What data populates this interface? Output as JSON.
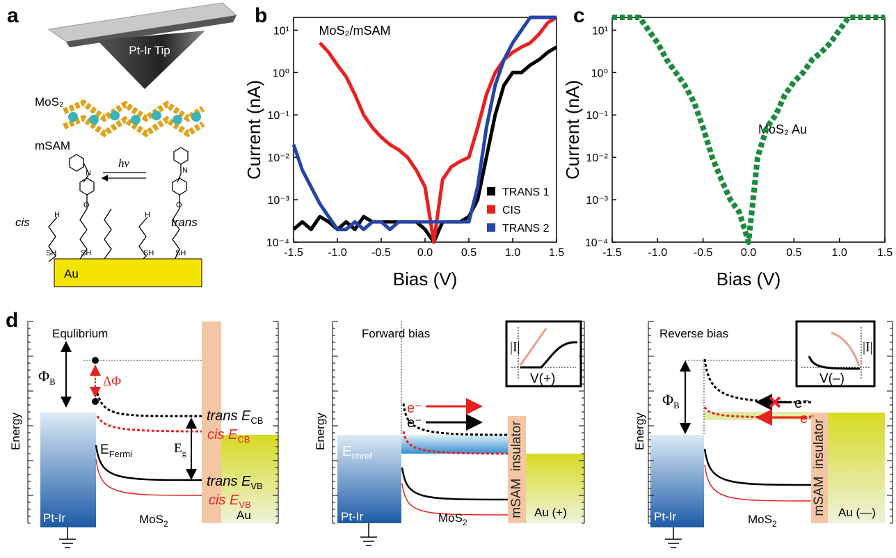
{
  "panel_labels": [
    "a",
    "b",
    "c",
    "d"
  ],
  "schematic": {
    "tip": "Pt-Ir Tip",
    "mos2": "MoS₂",
    "msam": "mSAM",
    "light": "hν",
    "cis": "cis",
    "trans": "trans",
    "thiol": "SH",
    "hydrogen": "H",
    "oxygen": "O",
    "nitrogen": "N",
    "substrate": "Au"
  },
  "chart_data": [
    {
      "type": "line",
      "annotation": "MoS₂/mSAM",
      "x_label": "Bias (V)",
      "y_label": "Current (nA)",
      "log_y": true,
      "legend": "lower right",
      "x": [
        -1.5,
        -1.4,
        -1.3,
        -1.2,
        -1.1,
        -1,
        -0.9,
        -0.8,
        -0.7,
        -0.6,
        -0.5,
        -0.4,
        -0.3,
        -0.2,
        -0.1,
        0,
        0.1,
        0.2,
        0.3,
        0.4,
        0.5,
        0.6,
        0.7,
        0.8,
        0.9,
        1,
        1.1,
        1.2,
        1.3,
        1.4,
        1.5
      ],
      "series": [
        {
          "name": "TRANS 1",
          "color": "#000000",
          "values": [
            0.0002,
            0.0003,
            0.0002,
            0.0004,
            0.0003,
            0.0002,
            0.0003,
            0.0002,
            0.0004,
            0.0003,
            0.0003,
            0.0003,
            0.0003,
            0.0003,
            0.0003,
            0.0002,
            0.0001,
            0.0003,
            0.0003,
            0.0003,
            0.0004,
            0.001,
            0.01,
            0.1,
            0.5,
            1,
            1,
            1.5,
            2,
            3,
            4
          ]
        },
        {
          "name": "CIS",
          "color": "#e8211f",
          "values": [
            null,
            null,
            null,
            5,
            3,
            1.5,
            0.8,
            0.3,
            0.1,
            0.05,
            0.03,
            0.02,
            0.015,
            0.01,
            0.005,
            0.002,
            0.0001,
            0.003,
            0.006,
            0.008,
            0.01,
            0.05,
            0.3,
            1,
            2,
            3,
            4,
            5,
            8,
            15,
            20
          ]
        },
        {
          "name": "TRANS 2",
          "color": "#2444a8",
          "values": [
            0.02,
            0.005,
            0.002,
            0.0008,
            0.0004,
            0.0002,
            0.0002,
            0.0003,
            0.0002,
            0.0003,
            0.0003,
            0.0002,
            0.0003,
            0.0003,
            0.0003,
            0.0003,
            0.0003,
            0.0003,
            0.0003,
            0.0003,
            0.0003,
            0.002,
            0.05,
            0.5,
            2,
            5,
            10,
            20,
            20,
            20,
            20
          ]
        }
      ],
      "xlim": [
        -1.5,
        1.5
      ],
      "xticks": [
        -1.5,
        {
          "value": -1,
          "label": "-1.0"
        },
        -0.5,
        {
          "value": 0,
          "label": "0.0"
        },
        0.5,
        {
          "value": 1,
          "label": "1.0"
        },
        1.5
      ],
      "ylim": [
        0.0001,
        20
      ],
      "yticks": [
        {
          "value": 0.0001,
          "label": "10⁻⁴"
        },
        {
          "value": 0.001,
          "label": "10⁻³"
        },
        {
          "value": 0.01,
          "label": "10⁻²"
        },
        {
          "value": 0.1,
          "label": "10⁻¹"
        },
        {
          "value": 1,
          "label": "10⁰"
        },
        {
          "value": 10,
          "label": "10¹"
        }
      ]
    },
    {
      "type": "line",
      "annotation": "MoS₂ Au",
      "x_label": "Bias (V)",
      "y_label": "Current (nA)",
      "log_y": true,
      "marker": "square",
      "x": [
        -1.5,
        -1.4,
        -1.3,
        -1.2,
        -1.1,
        -1,
        -0.9,
        -0.8,
        -0.7,
        -0.6,
        -0.5,
        -0.4,
        -0.3,
        -0.2,
        -0.1,
        0,
        0.1,
        0.2,
        0.3,
        0.4,
        0.5,
        0.6,
        0.7,
        0.8,
        0.9,
        1,
        1.1,
        1.2,
        1.3,
        1.4,
        1.5
      ],
      "series": [
        {
          "color": "#1a8a3c",
          "values": [
            20,
            20,
            20,
            20,
            10,
            5,
            2,
            1,
            0.5,
            0.2,
            0.05,
            0.01,
            0.003,
            0.001,
            0.0005,
            0.0001,
            0.01,
            0.05,
            0.1,
            0.3,
            0.6,
            1,
            2,
            3,
            5,
            10,
            20,
            20,
            20,
            20,
            20
          ]
        }
      ],
      "xlim": [
        -1.5,
        1.5
      ],
      "xticks": [
        -1.5,
        {
          "value": -1,
          "label": "-1.0"
        },
        -0.5,
        {
          "value": 0,
          "label": "0.0"
        },
        0.5,
        {
          "value": 1,
          "label": "1.0"
        },
        1.5
      ],
      "ylim": [
        0.0001,
        20
      ],
      "yticks": [
        {
          "value": 0.0001,
          "label": "10⁻⁴"
        },
        {
          "value": 0.001,
          "label": "10⁻³"
        },
        {
          "value": 0.01,
          "label": "10⁻²"
        },
        {
          "value": 0.1,
          "label": "10⁻¹"
        },
        {
          "value": 1,
          "label": "10⁰"
        },
        {
          "value": 10,
          "label": "10¹"
        }
      ]
    }
  ],
  "band_diagrams": [
    {
      "title": "Equlibrium",
      "axis": "Energy",
      "tip": "Pt-Ir",
      "semiconductor": {
        "text": "MoS",
        "sub": "2"
      },
      "metal": "Au",
      "barrier": {
        "text": "Φ",
        "sub": "B"
      },
      "shift": "ΔΦ",
      "fermi": {
        "text": "E",
        "sub": "Fermi"
      },
      "gap": {
        "text": "E",
        "sub": "g"
      },
      "trans_cb": {
        "text": "trans E",
        "sub": "CB"
      },
      "cis_cb": {
        "text": "cis E",
        "sub": "CB"
      },
      "trans_vb": {
        "text": "trans E",
        "sub": "VB"
      },
      "cis_vb": {
        "text": "cis E",
        "sub": "VB"
      }
    },
    {
      "title": "Forward bias",
      "axis": "Energy",
      "tip": "Pt-Ir",
      "semiconductor": {
        "text": "MoS",
        "sub": "2"
      },
      "insulator": "mSAM  insulator",
      "metal": "Au (+)",
      "imref": {
        "text": "E",
        "sub": "Imref"
      },
      "electron": "e⁻",
      "inset_y": "|I|",
      "inset_x": "V(+)"
    },
    {
      "title": "Reverse bias",
      "axis": "Energy",
      "tip": "Pt-Ir",
      "semiconductor": {
        "text": "MoS",
        "sub": "2"
      },
      "insulator": "mSAM  insulator",
      "metal": "Au (—)",
      "barrier": {
        "text": "Φ",
        "sub": "B"
      },
      "electron": "e⁻",
      "inset_y": "|I|",
      "inset_x": "V(–)"
    }
  ]
}
